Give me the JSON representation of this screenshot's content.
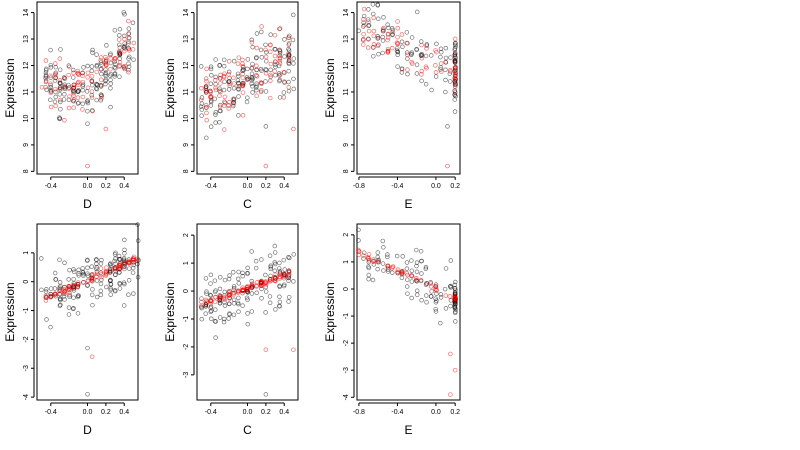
{
  "colors": {
    "observed": "#000000",
    "fitted": "#ff0000",
    "background": "#ffffff"
  },
  "chart_data": [
    {
      "type": "scatter",
      "xlabel": "D",
      "ylabel": "Expression",
      "xlim": [
        -0.55,
        0.55
      ],
      "ylim": [
        7.9,
        14.4
      ],
      "xticks": [
        -0.4,
        0.0,
        0.2,
        0.4
      ],
      "xtick_labels": [
        "-0.4",
        "0.0",
        "0.2",
        "0.4"
      ],
      "yticks": [
        8,
        9,
        10,
        11,
        12,
        13,
        14
      ],
      "ytick_labels": [
        "8",
        "9",
        "10",
        "11",
        "12",
        "13",
        "14"
      ],
      "pattern": "u",
      "xrange": [
        -0.5,
        0.5
      ],
      "yparams": [
        11.3,
        1.6,
        0.0,
        0.55
      ],
      "fit_sd": 0.45,
      "n": 260,
      "outliers": [
        [
          0.0,
          8.2
        ],
        [
          0.0,
          9.8
        ],
        [
          0.2,
          9.6
        ]
      ]
    },
    {
      "type": "scatter",
      "xlabel": "C",
      "ylabel": "Expression",
      "xlim": [
        -0.55,
        0.55
      ],
      "ylim": [
        7.9,
        14.4
      ],
      "xticks": [
        -0.4,
        0.0,
        0.2,
        0.4
      ],
      "xtick_labels": [
        "-0.4",
        "0.0",
        "0.2",
        "0.4"
      ],
      "yticks": [
        8,
        9,
        10,
        11,
        12,
        13,
        14
      ],
      "ytick_labels": [
        "8",
        "9",
        "10",
        "11",
        "12",
        "13",
        "14"
      ],
      "pattern": "linear",
      "xrange": [
        -0.5,
        0.5
      ],
      "yparams": [
        11.6,
        1.5,
        0.0,
        0.6
      ],
      "fit_sd": 0.55,
      "n": 260,
      "outliers": [
        [
          0.2,
          8.2
        ],
        [
          0.2,
          9.7
        ],
        [
          0.5,
          9.6
        ]
      ]
    },
    {
      "type": "scatter",
      "xlabel": "E",
      "ylabel": "Expression",
      "xlim": [
        -0.82,
        0.25
      ],
      "ylim": [
        7.9,
        14.4
      ],
      "xticks": [
        -0.8,
        -0.4,
        0.0,
        0.2
      ],
      "xtick_labels": [
        "-0.8",
        "-0.4",
        "0.0",
        "0.2"
      ],
      "yticks": [
        8,
        9,
        10,
        11,
        12,
        13,
        14
      ],
      "ytick_labels": [
        "8",
        "9",
        "10",
        "11",
        "12",
        "13",
        "14"
      ],
      "pattern": "decreasing_with_column",
      "xrange": [
        -0.8,
        0.2
      ],
      "yparams": [
        12.1,
        -1.6,
        0.0,
        0.6
      ],
      "fit_sd": 0.4,
      "n": 200,
      "outliers": [
        [
          0.12,
          9.7
        ],
        [
          0.12,
          8.2
        ]
      ]
    },
    {
      "type": "scatter",
      "xlabel": "D",
      "ylabel": "Expression",
      "xlim": [
        -0.55,
        0.55
      ],
      "ylim": [
        -4.1,
        2.0
      ],
      "xticks": [
        -0.4,
        0.0,
        0.2,
        0.4
      ],
      "xtick_labels": [
        "-0.4",
        "0.0",
        "0.2",
        "0.4"
      ],
      "yticks": [
        -4,
        -3,
        -2,
        -1,
        0,
        1
      ],
      "ytick_labels": [
        "-4",
        "-3",
        "-2",
        "-1",
        "0",
        "1"
      ],
      "pattern": "linear",
      "xrange": [
        -0.5,
        0.55
      ],
      "yparams": [
        0.05,
        1.4,
        0.0,
        0.5
      ],
      "fit_sd": 0.06,
      "n": 260,
      "outliers": [
        [
          0.0,
          -3.9
        ],
        [
          0.0,
          -2.3
        ],
        [
          0.05,
          -2.6
        ]
      ]
    },
    {
      "type": "scatter",
      "xlabel": "C",
      "ylabel": "Expression",
      "xlim": [
        -0.55,
        0.55
      ],
      "ylim": [
        -3.9,
        2.4
      ],
      "xticks": [
        -0.4,
        0.0,
        0.2,
        0.4
      ],
      "xtick_labels": [
        "-0.4",
        "0.0",
        "0.2",
        "0.4"
      ],
      "yticks": [
        -3,
        -2,
        -1,
        0,
        1,
        2
      ],
      "ytick_labels": [
        "-3",
        "-2",
        "-1",
        "0",
        "1",
        "2"
      ],
      "pattern": "linear",
      "xrange": [
        -0.5,
        0.5
      ],
      "yparams": [
        0.1,
        1.2,
        0.0,
        0.5
      ],
      "fit_sd": 0.06,
      "n": 260,
      "outliers": [
        [
          0.2,
          -3.7
        ],
        [
          0.2,
          -2.1
        ],
        [
          0.5,
          -2.1
        ]
      ]
    },
    {
      "type": "scatter",
      "xlabel": "E",
      "ylabel": "Expression",
      "xlim": [
        -0.82,
        0.25
      ],
      "ylim": [
        -4.1,
        2.4
      ],
      "xticks": [
        -0.8,
        -0.4,
        0.0,
        0.2
      ],
      "xtick_labels": [
        "-0.8",
        "-0.4",
        "0.0",
        "0.2"
      ],
      "yticks": [
        -4,
        -3,
        -2,
        -1,
        0,
        1,
        2
      ],
      "ytick_labels": [
        "-4",
        "-3",
        "-2",
        "-1",
        "0",
        "1",
        "2"
      ],
      "pattern": "decreasing_with_column",
      "xrange": [
        -0.8,
        0.2
      ],
      "yparams": [
        0.0,
        -1.7,
        0.0,
        0.45
      ],
      "fit_sd": 0.05,
      "n": 200,
      "outliers": [
        [
          0.2,
          -3.0
        ],
        [
          0.15,
          -2.4
        ],
        [
          0.15,
          -3.9
        ]
      ]
    }
  ]
}
